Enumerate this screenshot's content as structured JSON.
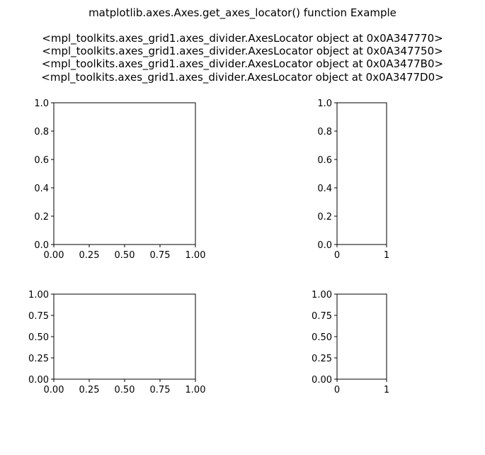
{
  "figure": {
    "title_lines": [
      "matplotlib.axes.Axes.get_axes_locator() function Example",
      "",
      "<mpl_toolkits.axes_grid1.axes_divider.AxesLocator object at 0x0A347770>",
      "<mpl_toolkits.axes_grid1.axes_divider.AxesLocator object at 0x0A347750>",
      "<mpl_toolkits.axes_grid1.axes_divider.AxesLocator object at 0x0A3477B0>",
      "<mpl_toolkits.axes_grid1.axes_divider.AxesLocator object at 0x0A3477D0>"
    ]
  },
  "chart_data": [
    {
      "type": "scatter",
      "title": "",
      "xlabel": "",
      "ylabel": "",
      "xlim": [
        0,
        1
      ],
      "ylim": [
        0,
        1
      ],
      "x_ticks": [
        "0.00",
        "0.25",
        "0.50",
        "0.75",
        "1.00"
      ],
      "y_ticks": [
        "0.0",
        "0.2",
        "0.4",
        "0.6",
        "0.8",
        "1.0"
      ],
      "grid": false,
      "series": []
    },
    {
      "type": "scatter",
      "title": "",
      "xlabel": "",
      "ylabel": "",
      "xlim": [
        0,
        1
      ],
      "ylim": [
        0,
        1
      ],
      "x_ticks": [
        "0",
        "1"
      ],
      "y_ticks": [
        "0.0",
        "0.2",
        "0.4",
        "0.6",
        "0.8",
        "1.0"
      ],
      "grid": false,
      "series": []
    },
    {
      "type": "scatter",
      "title": "",
      "xlabel": "",
      "ylabel": "",
      "xlim": [
        0,
        1
      ],
      "ylim": [
        0,
        1
      ],
      "x_ticks": [
        "0.00",
        "0.25",
        "0.50",
        "0.75",
        "1.00"
      ],
      "y_ticks": [
        "0.00",
        "0.25",
        "0.50",
        "0.75",
        "1.00"
      ],
      "grid": false,
      "series": []
    },
    {
      "type": "scatter",
      "title": "",
      "xlabel": "",
      "ylabel": "",
      "xlim": [
        0,
        1
      ],
      "ylim": [
        0,
        1
      ],
      "x_ticks": [
        "0",
        "1"
      ],
      "y_ticks": [
        "0.00",
        "0.25",
        "0.50",
        "0.75",
        "1.00"
      ],
      "grid": false,
      "series": []
    }
  ]
}
